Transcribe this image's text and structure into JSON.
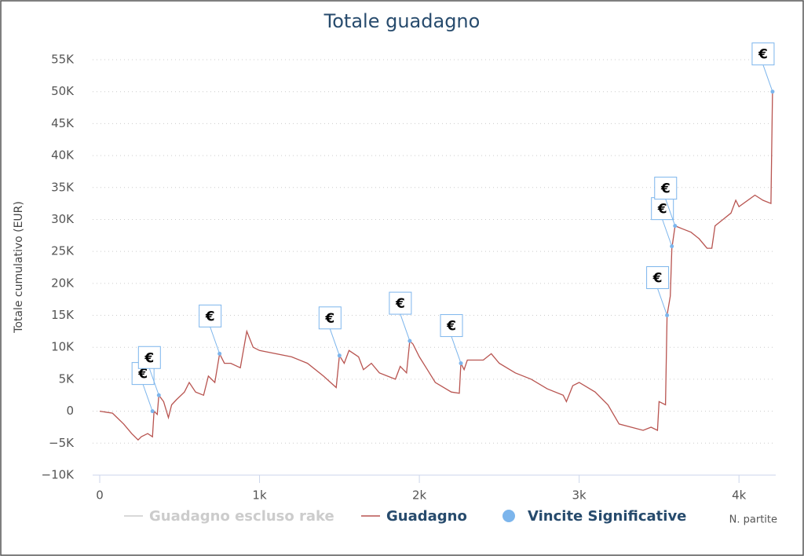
{
  "chart_data": {
    "type": "line",
    "title": "Totale guadagno",
    "y_label": "Totale cumulativo (EUR)",
    "x_label": "N. partite",
    "xlim": [
      0,
      4230
    ],
    "ylim": [
      -10000,
      55000
    ],
    "xticks": [
      0,
      {
        "value": 1000,
        "label": "1k"
      },
      {
        "value": 2000,
        "label": "2k"
      },
      {
        "value": 3000,
        "label": "3k"
      },
      {
        "value": 4000,
        "label": "4k"
      }
    ],
    "yticks": [
      {
        "value": -10000,
        "label": "−10K"
      },
      {
        "value": -5000,
        "label": "−5K"
      },
      0,
      {
        "value": 5000,
        "label": "5K"
      },
      {
        "value": 10000,
        "label": "10K"
      },
      {
        "value": 15000,
        "label": "15K"
      },
      {
        "value": 20000,
        "label": "20K"
      },
      {
        "value": 25000,
        "label": "25K"
      },
      {
        "value": 30000,
        "label": "30K"
      },
      {
        "value": 35000,
        "label": "35K"
      },
      {
        "value": 40000,
        "label": "40K"
      },
      {
        "value": 45000,
        "label": "45K"
      },
      {
        "value": 50000,
        "label": "50K"
      },
      {
        "value": 55000,
        "label": "55K"
      }
    ],
    "grid": true,
    "marker_symbol": "€",
    "series": [
      {
        "name": "Guadagno escluso rake",
        "type": "line",
        "color": "#cccccc",
        "visible": false
      },
      {
        "name": "Guadagno",
        "type": "line",
        "color": "#b85450",
        "visible": true,
        "x": [
          0,
          50,
          80,
          100,
          150,
          200,
          240,
          260,
          300,
          330,
          340,
          360,
          370,
          400,
          430,
          450,
          480,
          530,
          560,
          600,
          650,
          680,
          720,
          750,
          780,
          820,
          880,
          920,
          960,
          1000,
          1200,
          1300,
          1400,
          1480,
          1500,
          1530,
          1560,
          1620,
          1650,
          1700,
          1750,
          1850,
          1880,
          1920,
          1940,
          1960,
          2000,
          2050,
          2100,
          2200,
          2250,
          2260,
          2280,
          2300,
          2400,
          2450,
          2500,
          2600,
          2700,
          2800,
          2900,
          2920,
          2960,
          3000,
          3100,
          3180,
          3250,
          3400,
          3450,
          3490,
          3500,
          3540,
          3550,
          3570,
          3580,
          3600,
          3650,
          3700,
          3750,
          3800,
          3830,
          3850,
          3900,
          3950,
          3980,
          4000,
          4100,
          4150,
          4200,
          4210
        ],
        "values": [
          0,
          -200,
          -300,
          -800,
          -2000,
          -3500,
          -4500,
          -4000,
          -3500,
          -4000,
          0,
          -500,
          2500,
          1500,
          -1000,
          1000,
          1800,
          3000,
          4500,
          3000,
          2500,
          5500,
          4500,
          9000,
          7500,
          7500,
          6800,
          12500,
          10000,
          9500,
          8500,
          7500,
          5500,
          3700,
          8700,
          7500,
          9500,
          8500,
          6500,
          7500,
          6000,
          5000,
          7000,
          6000,
          11000,
          10500,
          8500,
          6500,
          4500,
          3000,
          2800,
          7500,
          6500,
          8000,
          8000,
          9000,
          7500,
          6000,
          5000,
          3500,
          2500,
          1500,
          4000,
          4500,
          3000,
          1000,
          -2000,
          -3000,
          -2500,
          -3000,
          1500,
          1000,
          15000,
          18000,
          25500,
          29000,
          28500,
          28000,
          27000,
          25500,
          25500,
          29000,
          30000,
          31000,
          33000,
          32000,
          33800,
          33000,
          32500,
          50000
        ]
      },
      {
        "name": "Vincite Significative",
        "type": "scatter",
        "color": "#7cb5ec",
        "visible": true,
        "x": [
          330,
          370,
          750,
          1500,
          1940,
          2260,
          3550,
          3580,
          3600,
          4210
        ],
        "values": [
          0,
          2500,
          9000,
          8700,
          11000,
          7500,
          15000,
          25800,
          29000,
          50000
        ]
      }
    ]
  }
}
